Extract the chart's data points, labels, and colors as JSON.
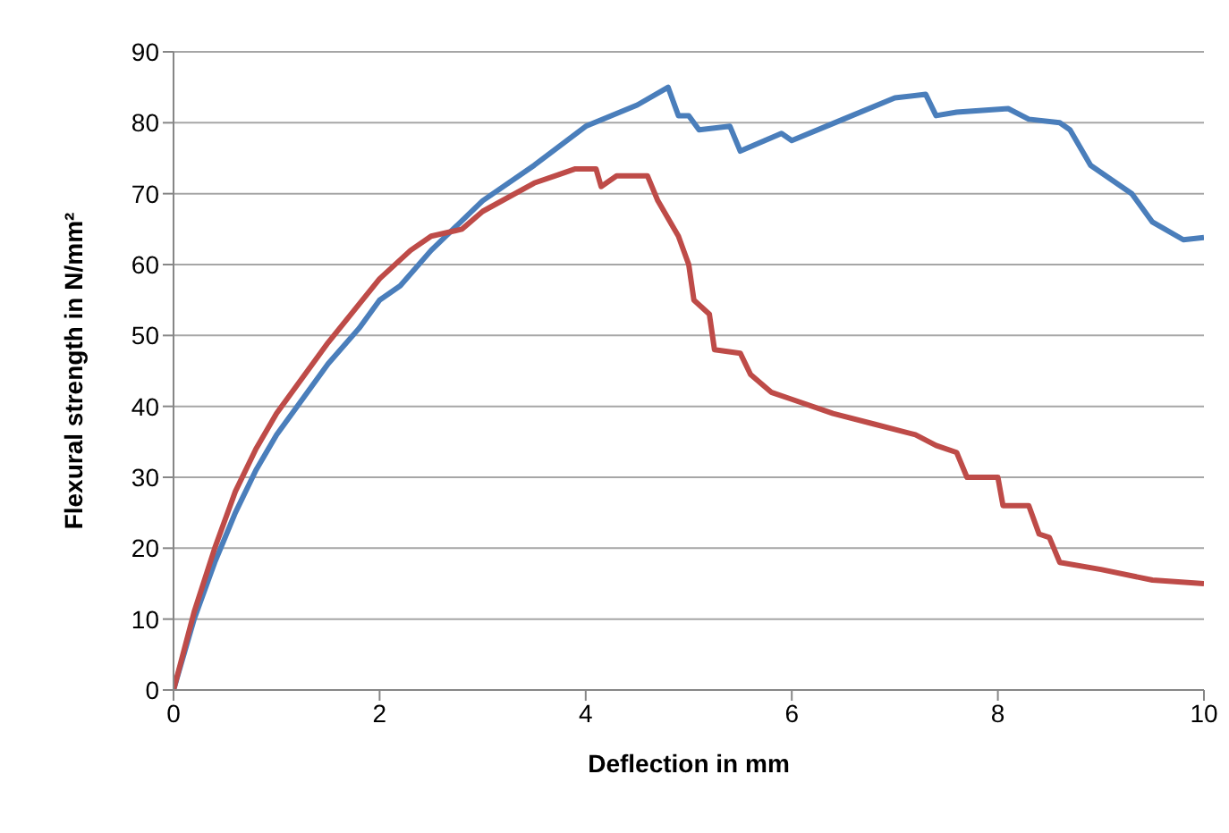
{
  "chart_data": {
    "type": "line",
    "xlabel": "Deflection in mm",
    "ylabel": "Flexural strength in N/mm²",
    "xlim": [
      0,
      10
    ],
    "xticks": [
      0,
      2,
      4,
      6,
      8,
      10
    ],
    "ylim": [
      0,
      90
    ],
    "yticks": [
      0,
      10,
      20,
      30,
      40,
      50,
      60,
      70,
      80,
      90
    ],
    "grid": "y",
    "marker": "none",
    "line_style": "solid",
    "series": [
      {
        "color": "#4a7ebb",
        "x": [
          0,
          0.2,
          0.4,
          0.6,
          0.8,
          1.0,
          1.2,
          1.5,
          1.8,
          2.0,
          2.2,
          2.5,
          3.0,
          3.5,
          4.0,
          4.5,
          4.8,
          4.9,
          5.0,
          5.1,
          5.4,
          5.5,
          5.9,
          6.0,
          6.5,
          7.0,
          7.3,
          7.4,
          7.6,
          8.1,
          8.3,
          8.6,
          8.7,
          8.9,
          9.3,
          9.5,
          9.8,
          10
        ],
        "values": [
          0,
          10,
          18,
          25,
          31,
          36,
          40,
          46,
          51,
          55,
          57,
          62,
          69,
          74,
          79.5,
          82.5,
          85,
          81,
          81,
          79,
          79.5,
          76,
          78.5,
          77.5,
          80.5,
          83.5,
          84,
          81,
          81.5,
          82,
          80.5,
          80,
          79,
          74,
          70,
          66,
          63.5,
          63.8
        ]
      },
      {
        "color": "#be4b48",
        "x": [
          0,
          0.2,
          0.4,
          0.6,
          0.8,
          1.0,
          1.5,
          2.0,
          2.3,
          2.5,
          2.8,
          3.0,
          3.5,
          3.7,
          3.9,
          4.1,
          4.15,
          4.3,
          4.6,
          4.7,
          4.9,
          5.0,
          5.05,
          5.2,
          5.25,
          5.5,
          5.6,
          5.8,
          6.0,
          6.4,
          6.8,
          7.2,
          7.4,
          7.6,
          7.7,
          8.0,
          8.05,
          8.3,
          8.4,
          8.5,
          8.6,
          9.0,
          9.5,
          10
        ],
        "values": [
          0,
          11,
          20,
          28,
          34,
          39,
          49,
          58,
          62,
          64,
          65,
          67.5,
          71.5,
          72.5,
          73.5,
          73.5,
          71,
          72.5,
          72.5,
          69,
          64,
          60,
          55,
          53,
          48,
          47.5,
          44.5,
          42,
          41,
          39,
          37.5,
          36,
          34.5,
          33.5,
          30,
          30,
          26,
          26,
          22,
          21.5,
          18,
          17,
          15.5,
          15
        ]
      }
    ]
  }
}
